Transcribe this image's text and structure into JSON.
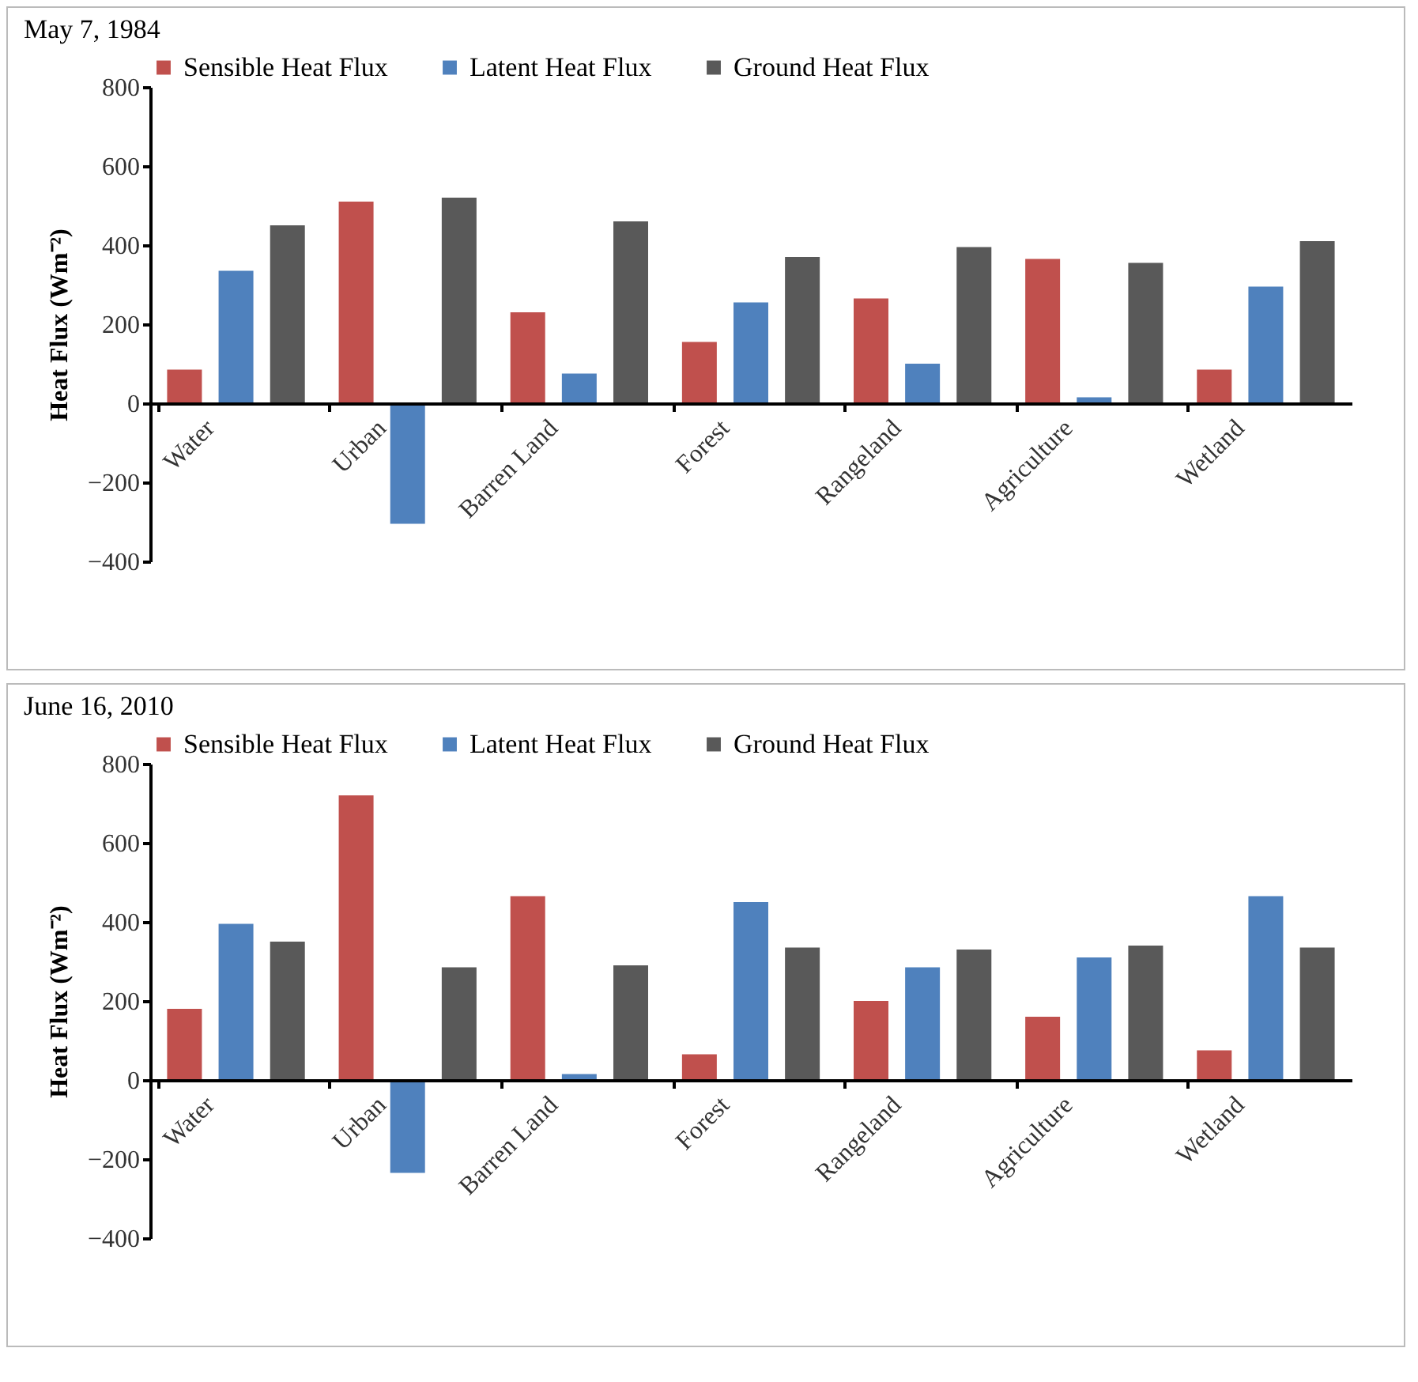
{
  "chart_data": [
    {
      "type": "bar",
      "title": "May 7, 1984",
      "ylabel": "Heat Flux (Wm⁻²)",
      "categories": [
        "Water",
        "Urban",
        "Barren Land",
        "Forest",
        "Rangeland",
        "Agriculture",
        "Wetland"
      ],
      "series": [
        {
          "name": "Sensible Heat Flux",
          "color": "#c0504d",
          "values": [
            85,
            510,
            230,
            155,
            265,
            365,
            85
          ]
        },
        {
          "name": "Latent Heat Flux",
          "color": "#4f81bd",
          "values": [
            335,
            -305,
            75,
            255,
            100,
            15,
            295
          ]
        },
        {
          "name": "Ground Heat Flux",
          "color": "#595959",
          "values": [
            450,
            520,
            460,
            370,
            395,
            355,
            410
          ]
        }
      ],
      "ylim": [
        -400,
        800
      ],
      "yticks": [
        -400,
        -200,
        0,
        200,
        400,
        600,
        800
      ],
      "grid": false,
      "legend": "top"
    },
    {
      "type": "bar",
      "title": "June 16, 2010",
      "ylabel": "Heat Flux (Wm⁻²)",
      "categories": [
        "Water",
        "Urban",
        "Barren Land",
        "Forest",
        "Rangeland",
        "Agriculture",
        "Wetland"
      ],
      "series": [
        {
          "name": "Sensible Heat Flux",
          "color": "#c0504d",
          "values": [
            180,
            720,
            465,
            65,
            200,
            160,
            75
          ]
        },
        {
          "name": "Latent Heat Flux",
          "color": "#4f81bd",
          "values": [
            395,
            -235,
            15,
            450,
            285,
            310,
            465
          ]
        },
        {
          "name": "Ground Heat Flux",
          "color": "#595959",
          "values": [
            350,
            285,
            290,
            335,
            330,
            340,
            335
          ]
        }
      ],
      "ylim": [
        -400,
        800
      ],
      "yticks": [
        -400,
        -200,
        0,
        200,
        400,
        600,
        800
      ],
      "grid": false,
      "legend": "top"
    }
  ]
}
